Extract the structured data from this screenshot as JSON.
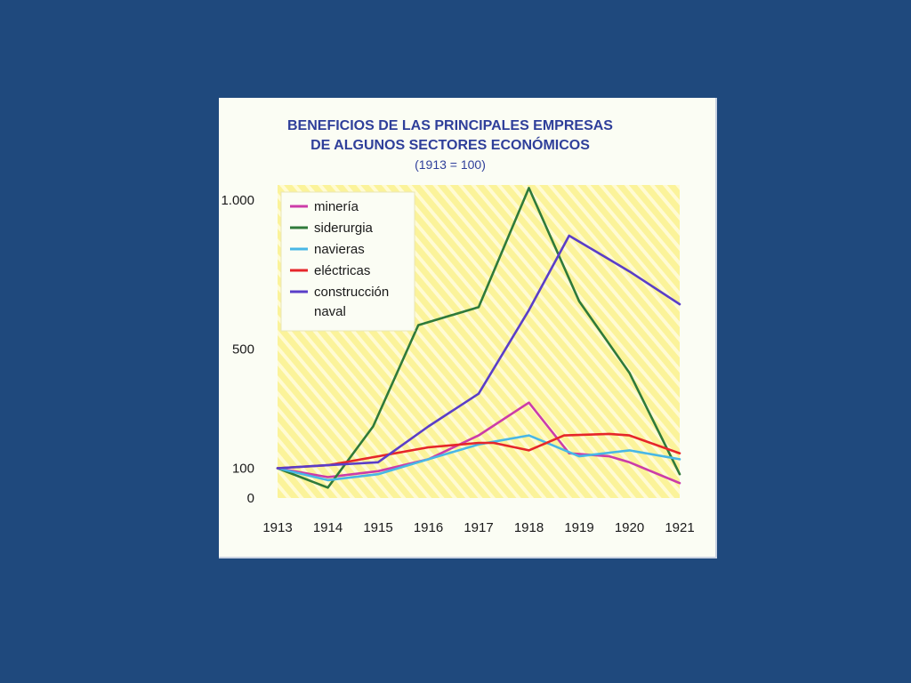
{
  "chart_data": {
    "type": "line",
    "title": [
      "BENEFICIOS DE LAS PRINCIPALES EMPRESAS",
      "DE ALGUNOS SECTORES ECONÓMICOS"
    ],
    "subtitle": "(1913 = 100)",
    "xlabel": "",
    "ylabel": "",
    "categories": [
      "1913",
      "1914",
      "1915",
      "1916",
      "1917",
      "1918",
      "1919",
      "1920",
      "1921"
    ],
    "ylim": [
      0,
      1050
    ],
    "y_ticks": [
      {
        "value": 0,
        "label": "0"
      },
      {
        "value": 100,
        "label": "100"
      },
      {
        "value": 500,
        "label": "500"
      },
      {
        "value": 1000,
        "label": "1.000"
      }
    ],
    "legend_position": "top-left",
    "background_color": "#fbf7a6",
    "hatch_color": "#fffde0",
    "series": [
      {
        "name": "minería",
        "color": "#cc3ca8",
        "x": [
          1913,
          1914,
          1915,
          1916,
          1917,
          1918,
          1918.8,
          1919.6,
          1920,
          1921
        ],
        "values": [
          100,
          70,
          90,
          130,
          210,
          320,
          150,
          140,
          120,
          50
        ]
      },
      {
        "name": "siderurgia",
        "color": "#2f7a3a",
        "x": [
          1913,
          1914,
          1914.9,
          1915.8,
          1917,
          1918,
          1919,
          1920,
          1921
        ],
        "values": [
          100,
          35,
          240,
          580,
          640,
          1040,
          660,
          420,
          80
        ]
      },
      {
        "name": "navieras",
        "color": "#48b7e6",
        "x": [
          1913,
          1914,
          1915,
          1916,
          1917,
          1918,
          1919,
          1920,
          1921
        ],
        "values": [
          100,
          60,
          80,
          130,
          180,
          210,
          140,
          160,
          130
        ]
      },
      {
        "name": "eléctricas",
        "color": "#e6262a",
        "x": [
          1913,
          1914,
          1915,
          1916,
          1917,
          1917.3,
          1918,
          1918.7,
          1919.6,
          1920,
          1921
        ],
        "values": [
          100,
          110,
          140,
          170,
          185,
          185,
          160,
          210,
          215,
          210,
          150
        ]
      },
      {
        "name": "construcción\nnaval",
        "color": "#5a3ec8",
        "x": [
          1913,
          1914,
          1915,
          1916,
          1917,
          1918,
          1918.8,
          1919.6,
          1920,
          1921
        ],
        "values": [
          100,
          110,
          120,
          240,
          350,
          630,
          880,
          800,
          760,
          650
        ]
      }
    ]
  }
}
